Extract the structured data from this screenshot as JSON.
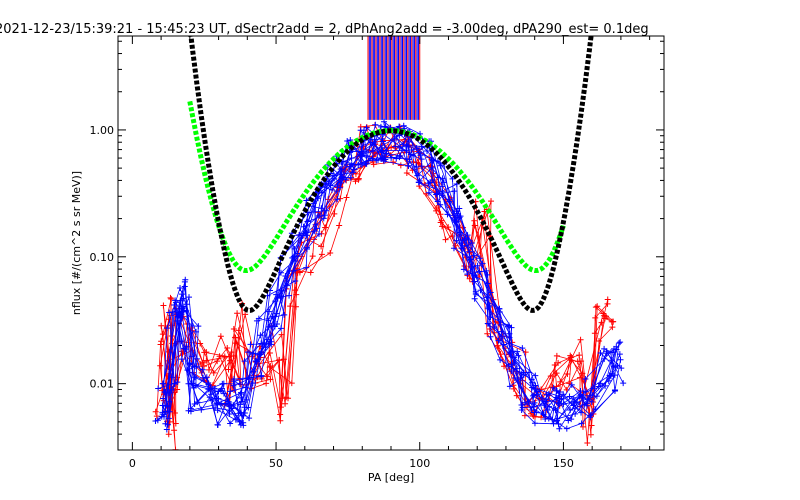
{
  "chart_data": {
    "type": "line",
    "title": "2021-12-23/15:39:21 - 15:45:23 UT, dSectr2add = 2, dPhAng2add = -3.00deg, dPA290_est=   0.1deg",
    "xlabel": "PA [deg]",
    "ylabel": "nflux [#/(cm^2 s sr MeV)]",
    "xlim": [
      -5,
      185
    ],
    "ylim": [
      0.003,
      5.5
    ],
    "yscale": "log",
    "x_ticks": [
      0,
      50,
      100,
      150
    ],
    "x_tick_labels": [
      "0",
      "50",
      "100",
      "150"
    ],
    "y_ticks": [
      0.01,
      0.1,
      1.0
    ],
    "y_tick_labels": [
      "0.01",
      "0.10",
      "1.00"
    ],
    "colors": {
      "frame": "#000000",
      "series_red": "#ff0000",
      "series_blue": "#0000ff",
      "fit_green": "#00ff00",
      "fit_black": "#000000"
    },
    "series": [
      {
        "color": "red",
        "style": "thin lines with + markers",
        "points": [
          [
            11,
            0.007
          ],
          [
            12,
            0.017
          ],
          [
            13,
            0.032
          ],
          [
            14,
            0.0045
          ],
          [
            15,
            0.012
          ],
          [
            18,
            0.025
          ],
          [
            24,
            0.015
          ],
          [
            28,
            0.012
          ],
          [
            33,
            0.02
          ],
          [
            35,
            0.009
          ],
          [
            38,
            0.03
          ],
          [
            42,
            0.011
          ],
          [
            46,
            0.015
          ],
          [
            50,
            0.02
          ],
          [
            54,
            0.0075
          ],
          [
            56,
            0.06
          ],
          [
            60,
            0.1
          ],
          [
            66,
            0.15
          ],
          [
            70,
            0.25
          ],
          [
            75,
            0.4
          ],
          [
            78,
            0.55
          ],
          [
            82,
            0.75
          ],
          [
            86,
            0.8
          ],
          [
            90,
            0.78
          ],
          [
            94,
            0.72
          ],
          [
            98,
            0.6
          ],
          [
            102,
            0.45
          ],
          [
            106,
            0.32
          ],
          [
            110,
            0.2
          ],
          [
            114,
            0.12
          ],
          [
            118,
            0.08
          ],
          [
            122,
            0.2
          ],
          [
            126,
            0.035
          ],
          [
            130,
            0.02
          ],
          [
            134,
            0.012
          ],
          [
            138,
            0.008
          ],
          [
            142,
            0.0065
          ],
          [
            146,
            0.01
          ],
          [
            150,
            0.012
          ],
          [
            154,
            0.015
          ],
          [
            158,
            0.005
          ],
          [
            162,
            0.028
          ],
          [
            165,
            0.033
          ]
        ]
      },
      {
        "color": "blue",
        "style": "thin lines with + markers",
        "points": [
          [
            11,
            0.0065
          ],
          [
            13,
            0.008
          ],
          [
            15,
            0.04
          ],
          [
            17,
            0.045
          ],
          [
            20,
            0.02
          ],
          [
            22,
            0.009
          ],
          [
            28,
            0.008
          ],
          [
            32,
            0.007
          ],
          [
            36,
            0.007
          ],
          [
            38,
            0.008
          ],
          [
            42,
            0.015
          ],
          [
            46,
            0.025
          ],
          [
            50,
            0.04
          ],
          [
            54,
            0.07
          ],
          [
            58,
            0.12
          ],
          [
            62,
            0.2
          ],
          [
            66,
            0.3
          ],
          [
            70,
            0.42
          ],
          [
            74,
            0.55
          ],
          [
            78,
            0.68
          ],
          [
            82,
            0.8
          ],
          [
            86,
            0.82
          ],
          [
            90,
            0.8
          ],
          [
            94,
            0.76
          ],
          [
            98,
            0.68
          ],
          [
            102,
            0.55
          ],
          [
            106,
            0.4
          ],
          [
            110,
            0.28
          ],
          [
            114,
            0.17
          ],
          [
            118,
            0.1
          ],
          [
            122,
            0.06
          ],
          [
            126,
            0.035
          ],
          [
            130,
            0.02
          ],
          [
            134,
            0.013
          ],
          [
            138,
            0.0085
          ],
          [
            142,
            0.007
          ],
          [
            146,
            0.0065
          ],
          [
            150,
            0.0065
          ],
          [
            154,
            0.007
          ],
          [
            160,
            0.008
          ],
          [
            165,
            0.013
          ],
          [
            168,
            0.015
          ]
        ]
      },
      {
        "name": "fit_green",
        "color": "green",
        "style": "thick dashed",
        "x_range": [
          20,
          150
        ],
        "fit_params": {
          "amplitude": 0.98,
          "center": 90,
          "width": 19.5,
          "floor": 0.0125
        }
      },
      {
        "name": "fit_black",
        "color": "black",
        "style": "thick dashed",
        "x_range": [
          17,
          160
        ],
        "fit_params": {
          "amplitude": 0.98,
          "center": 90,
          "width": 17.5,
          "floor": 0.0032
        }
      }
    ],
    "top_bars": {
      "color_red": "red",
      "color_blue": "blue",
      "x_range": [
        82,
        100
      ]
    }
  }
}
